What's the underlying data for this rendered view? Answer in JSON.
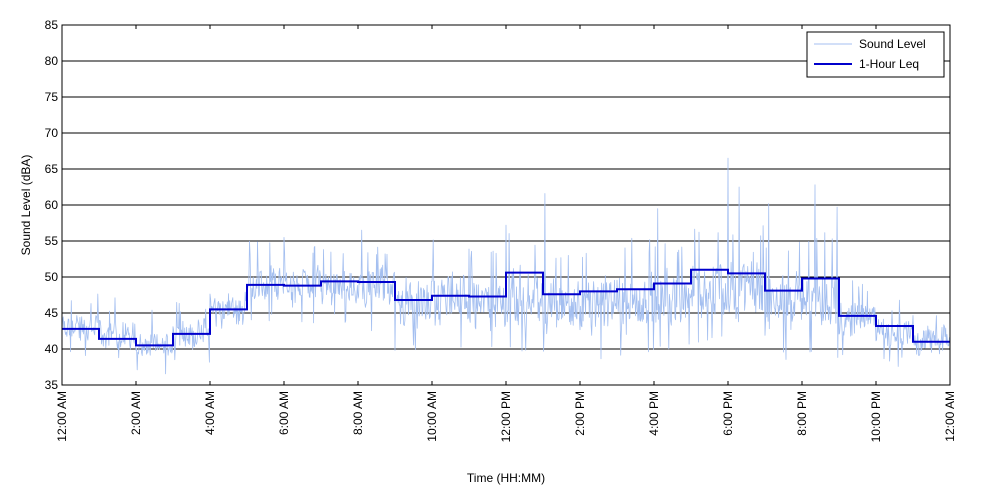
{
  "chart_data": {
    "type": "line",
    "xlabel": "Time (HH:MM)",
    "ylabel": "Sound Level (dBA)",
    "ylim": [
      35,
      85
    ],
    "xlim": [
      0,
      24
    ],
    "y_ticks": [
      35,
      40,
      45,
      50,
      55,
      60,
      65,
      70,
      75,
      80,
      85
    ],
    "x_ticks": [
      0,
      2,
      4,
      6,
      8,
      10,
      12,
      14,
      16,
      18,
      20,
      22,
      24
    ],
    "x_tick_labels": [
      "12:00 AM",
      "2:00 AM",
      "4:00 AM",
      "6:00 AM",
      "8:00 AM",
      "10:00 AM",
      "12:00 PM",
      "2:00 PM",
      "4:00 PM",
      "6:00 PM",
      "8:00 PM",
      "10:00 PM",
      "12:00 AM"
    ],
    "grid": "horizontal",
    "legend_position": "top-right",
    "series": [
      {
        "name": "Sound Level",
        "color": "#a4bff0",
        "style": "thin noisy line, sampled about once per minute",
        "hourly_typical_range_dBA": [
          [
            40,
            46
          ],
          [
            39,
            45
          ],
          [
            38,
            43
          ],
          [
            39,
            45
          ],
          [
            42,
            49
          ],
          [
            45,
            53
          ],
          [
            45,
            53
          ],
          [
            45,
            52
          ],
          [
            44,
            53
          ],
          [
            41,
            51
          ],
          [
            41,
            53
          ],
          [
            41,
            52
          ],
          [
            41,
            54
          ],
          [
            40,
            51
          ],
          [
            40,
            52
          ],
          [
            40,
            53
          ],
          [
            41,
            53
          ],
          [
            42,
            55
          ],
          [
            42,
            55
          ],
          [
            40,
            53
          ],
          [
            40,
            54
          ],
          [
            40,
            48
          ],
          [
            39,
            46
          ],
          [
            38,
            44
          ]
        ],
        "peaks": [
          {
            "x": 6.0,
            "y": 55.5
          },
          {
            "x": 8.1,
            "y": 56.5
          },
          {
            "x": 12.0,
            "y": 57.2
          },
          {
            "x": 13.05,
            "y": 61.6
          },
          {
            "x": 16.1,
            "y": 59.5
          },
          {
            "x": 18.0,
            "y": 66.5
          },
          {
            "x": 18.3,
            "y": 62.5
          },
          {
            "x": 19.1,
            "y": 60.2
          },
          {
            "x": 20.35,
            "y": 62.8
          },
          {
            "x": 20.95,
            "y": 59.7
          }
        ]
      },
      {
        "name": "1-Hour Leq",
        "color": "#0000cc",
        "style": "step",
        "hours": [
          0,
          1,
          2,
          3,
          4,
          5,
          6,
          7,
          8,
          9,
          10,
          11,
          12,
          13,
          14,
          15,
          16,
          17,
          18,
          19,
          20,
          21,
          22,
          23
        ],
        "values": [
          42.8,
          41.4,
          40.5,
          42.1,
          45.5,
          48.9,
          48.8,
          49.4,
          49.3,
          46.8,
          47.4,
          47.3,
          50.6,
          47.6,
          48.0,
          48.3,
          49.1,
          51.0,
          50.5,
          48.1,
          49.8,
          44.6,
          43.2,
          41.0
        ]
      }
    ]
  }
}
